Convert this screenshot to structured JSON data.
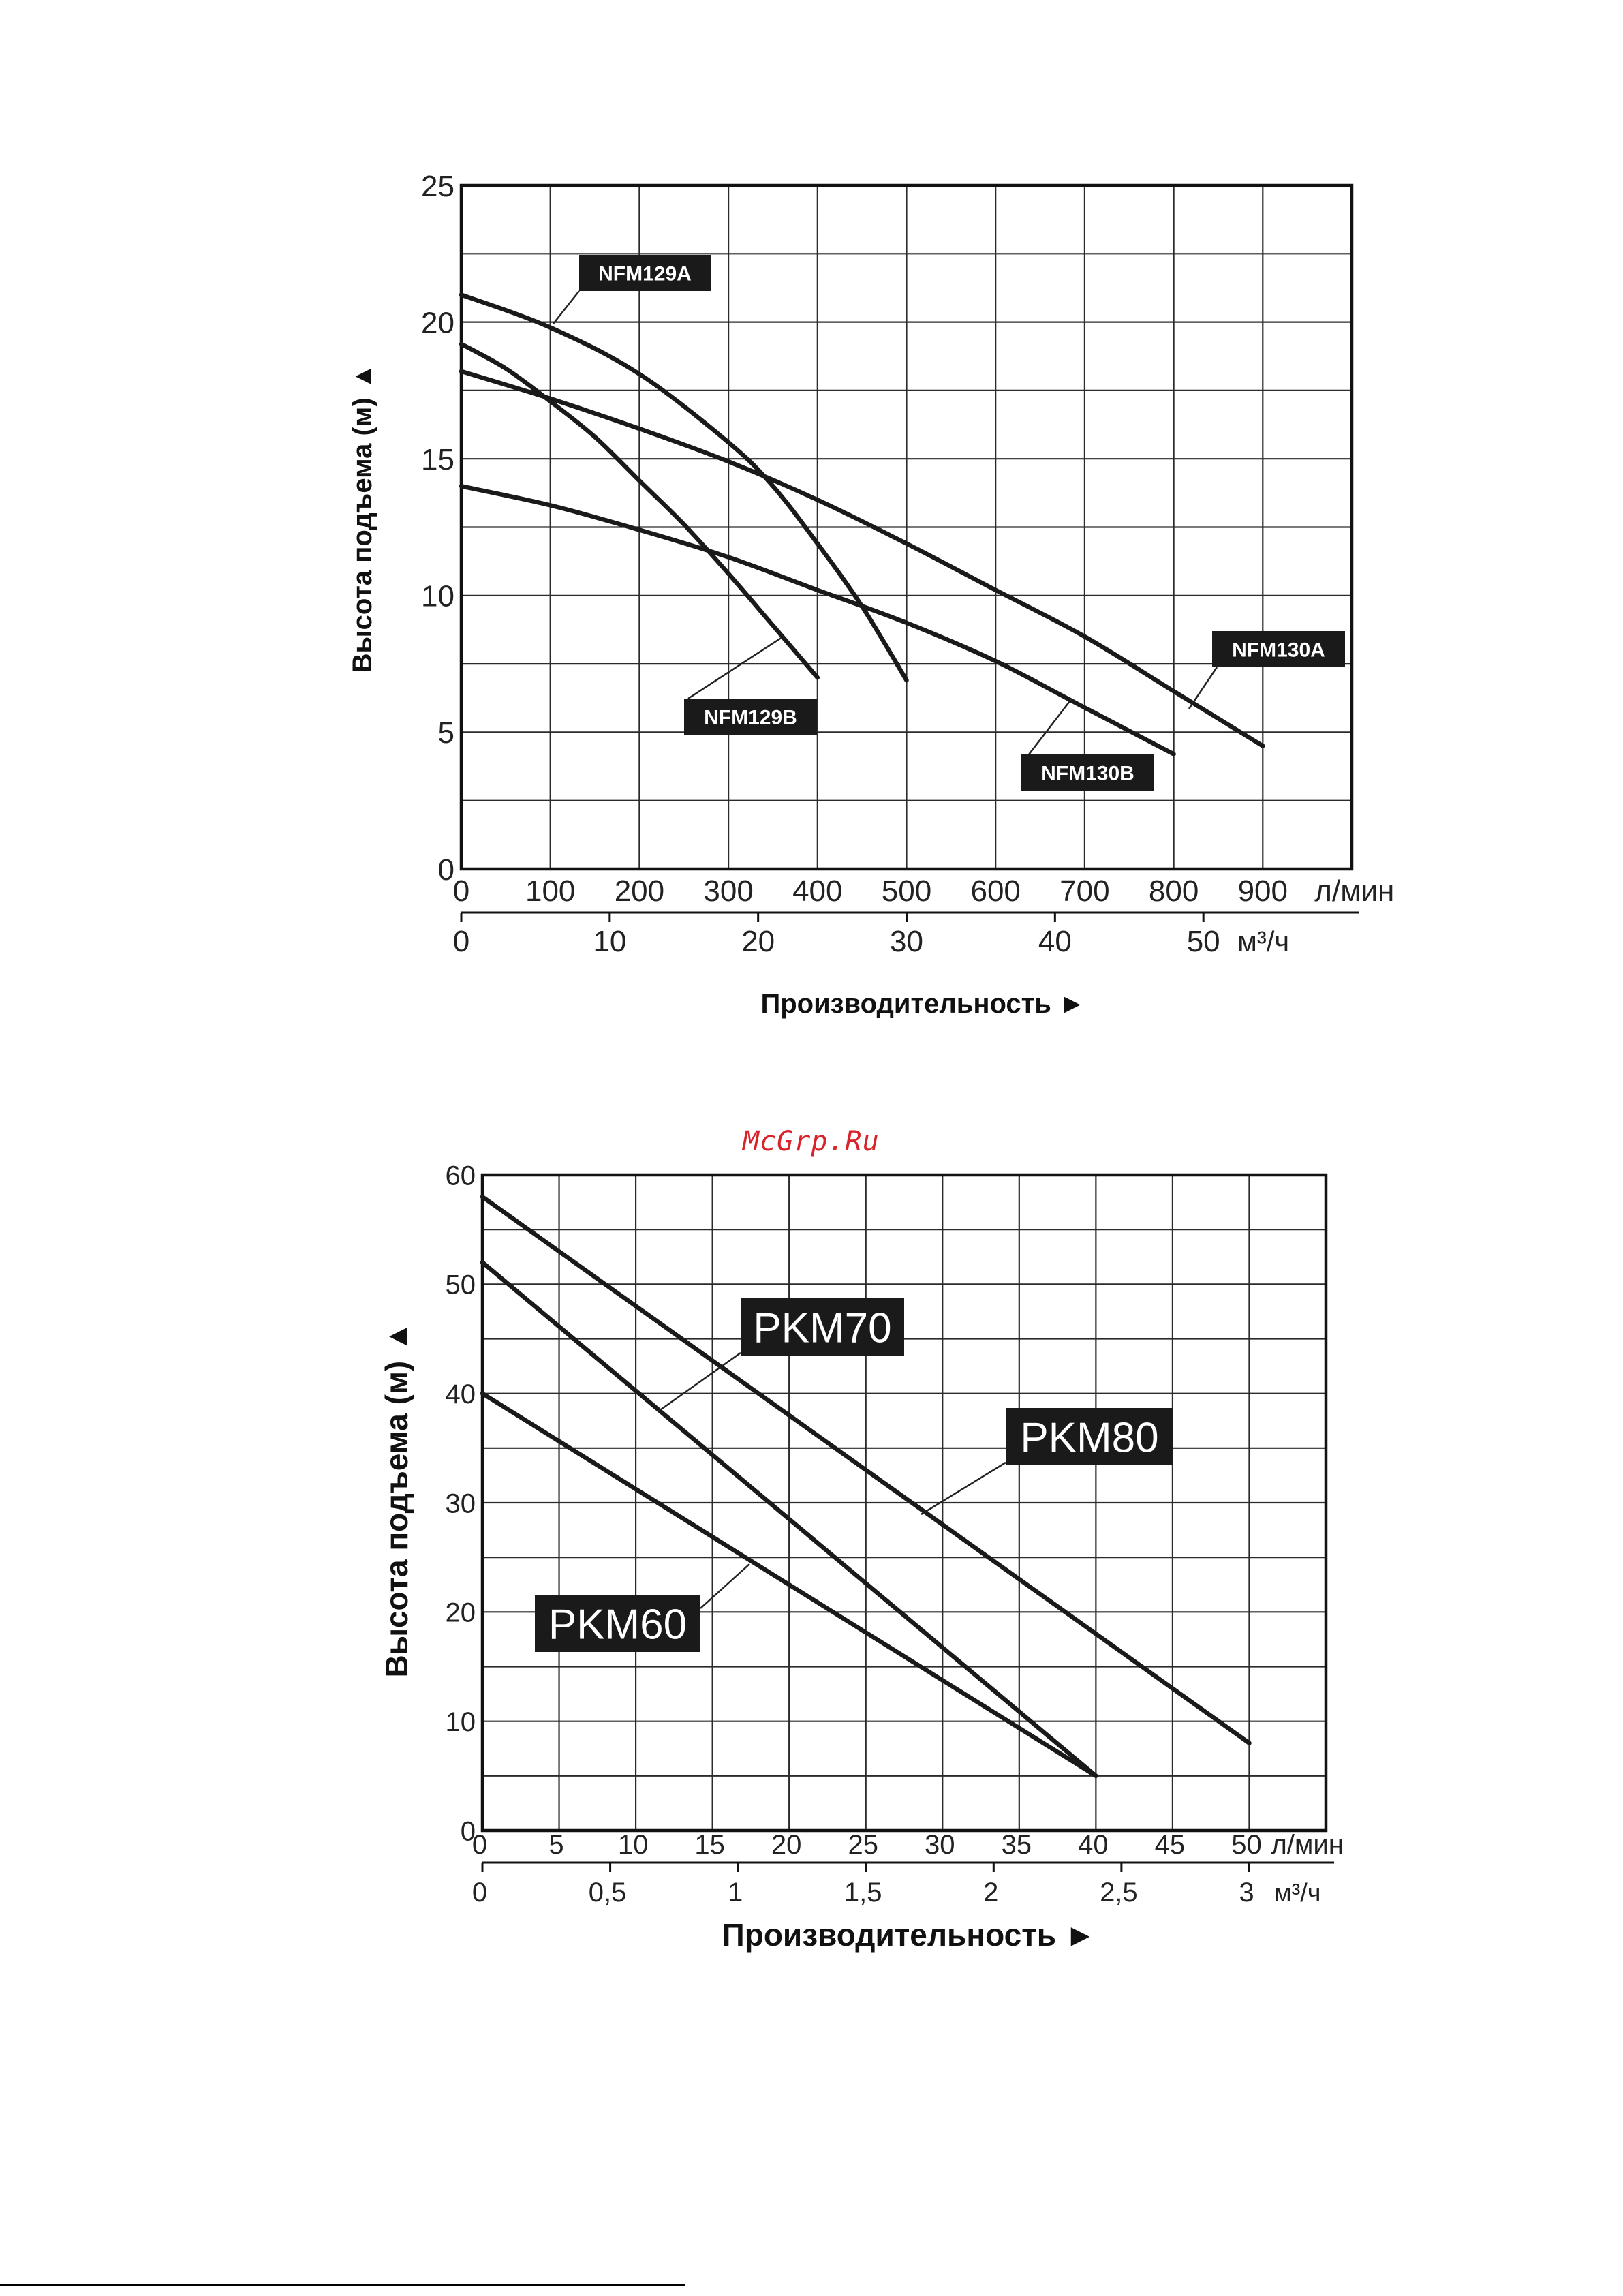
{
  "watermark": "McGrp.Ru",
  "colors": {
    "curve": "#1a1a1a",
    "label_bg": "#1a1a1a",
    "label_fg": "#ffffff",
    "watermark": "#d8232a"
  },
  "chart_data": [
    {
      "type": "line",
      "ylabel": "Высота подъема (м)",
      "xlabel": "Производительность",
      "x_unit_primary": "л/мин",
      "x_unit_secondary": "м³/ч",
      "xlim": [
        0,
        1000
      ],
      "ylim": [
        0,
        25
      ],
      "x_ticks": [
        "0",
        "100",
        "200",
        "300",
        "400",
        "500",
        "600",
        "700",
        "800",
        "900"
      ],
      "x_tick_values": [
        0,
        100,
        200,
        300,
        400,
        500,
        600,
        700,
        800,
        900
      ],
      "x2_ticks": [
        "0",
        "10",
        "20",
        "30",
        "40",
        "50"
      ],
      "x2_tick_values": [
        0,
        10,
        20,
        30,
        40,
        50
      ],
      "x2_factor": 16.6667,
      "y_ticks": [
        "0",
        "5",
        "10",
        "15",
        "20",
        "25"
      ],
      "y_tick_values": [
        0,
        5,
        10,
        15,
        20,
        25
      ],
      "grid": true,
      "series": [
        {
          "name": "NFM129A",
          "x": [
            0,
            100,
            200,
            300,
            350,
            400,
            450,
            500
          ],
          "y": [
            21,
            19.8,
            18.1,
            15.6,
            14,
            11.9,
            9.6,
            6.9
          ]
        },
        {
          "name": "NFM129B",
          "x": [
            0,
            50,
            100,
            150,
            200,
            250,
            300,
            350,
            400
          ],
          "y": [
            19.2,
            18.3,
            17.1,
            15.8,
            14.2,
            12.6,
            10.8,
            8.9,
            7
          ]
        },
        {
          "name": "NFM130A",
          "x": [
            0,
            100,
            200,
            300,
            400,
            500,
            600,
            700,
            800,
            900
          ],
          "y": [
            18.2,
            17.2,
            16.1,
            14.9,
            13.5,
            11.9,
            10.2,
            8.5,
            6.5,
            4.5
          ]
        },
        {
          "name": "NFM130B",
          "x": [
            0,
            100,
            200,
            300,
            400,
            500,
            600,
            700,
            800
          ],
          "y": [
            14,
            13.3,
            12.4,
            11.4,
            10.2,
            9,
            7.6,
            5.9,
            4.2
          ]
        }
      ]
    },
    {
      "type": "line",
      "ylabel": "Высота подъема (м)",
      "xlabel": "Производительность",
      "x_unit_primary": "л/мин",
      "x_unit_secondary": "м³/ч",
      "xlim": [
        0,
        55
      ],
      "ylim": [
        0,
        60
      ],
      "x_ticks": [
        "0",
        "5",
        "10",
        "15",
        "20",
        "25",
        "30",
        "35",
        "40",
        "45",
        "50"
      ],
      "x_tick_values": [
        0,
        5,
        10,
        15,
        20,
        25,
        30,
        35,
        40,
        45,
        50
      ],
      "x2_ticks": [
        "0",
        "0,5",
        "1",
        "1,5",
        "2",
        "2,5",
        "3"
      ],
      "x2_tick_values": [
        0,
        0.5,
        1,
        1.5,
        2,
        2.5,
        3
      ],
      "x2_factor": 16.6667,
      "y_ticks": [
        "0",
        "10",
        "20",
        "30",
        "40",
        "50",
        "60"
      ],
      "y_tick_values": [
        0,
        10,
        20,
        30,
        40,
        50,
        60
      ],
      "grid": true,
      "series": [
        {
          "name": "PKM80",
          "x": [
            0,
            50
          ],
          "y": [
            58,
            8
          ]
        },
        {
          "name": "PKM70",
          "x": [
            0,
            40
          ],
          "y": [
            52,
            5
          ]
        },
        {
          "name": "PKM60",
          "x": [
            0,
            40
          ],
          "y": [
            40,
            5
          ]
        }
      ]
    }
  ]
}
